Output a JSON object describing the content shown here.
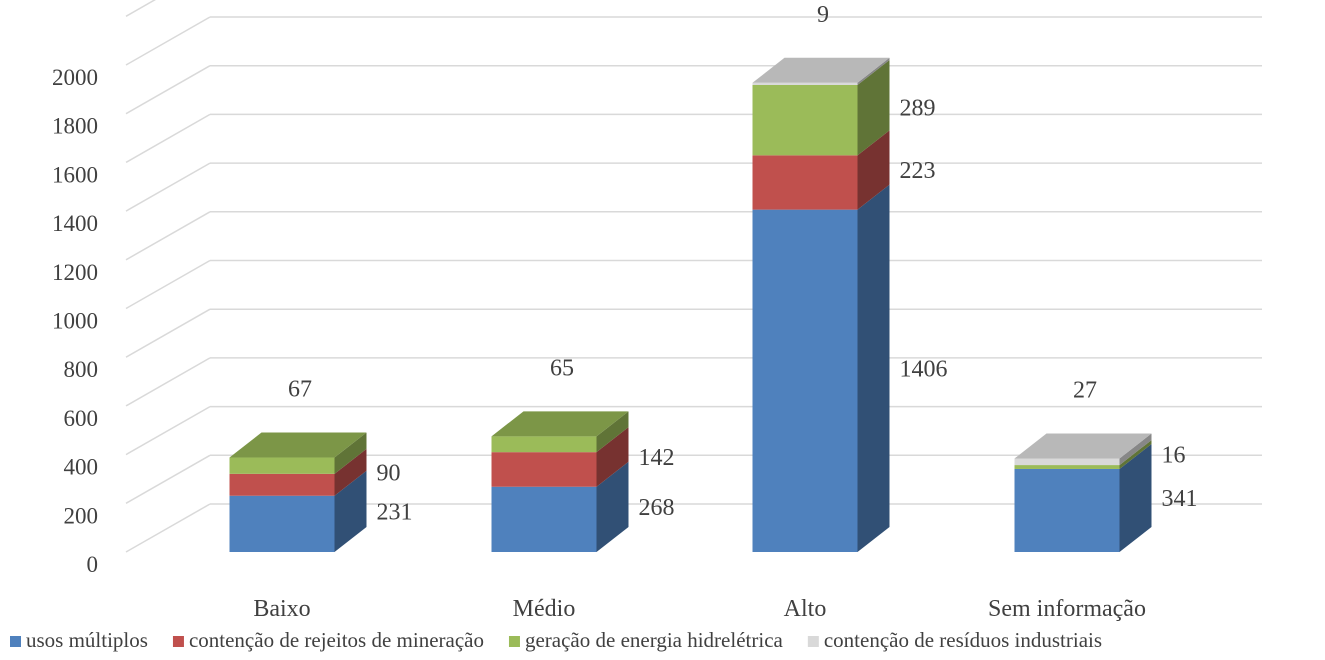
{
  "chart_data": {
    "type": "bar",
    "stacked": true,
    "three_d": true,
    "categories": [
      "Baixo",
      "Médio",
      "Alto",
      "Sem informação"
    ],
    "series": [
      {
        "name": "usos múltiplos",
        "values": [
          231,
          268,
          1406,
          341
        ],
        "color": "#4f81bd"
      },
      {
        "name": "contenção de rejeitos de mineração",
        "values": [
          90,
          142,
          223,
          0
        ],
        "color": "#c0504d"
      },
      {
        "name": "geração de energia hidrelétrica",
        "values": [
          67,
          65,
          289,
          16
        ],
        "color": "#9bbb59"
      },
      {
        "name": "contenção de resíduos industriais",
        "values": [
          0,
          0,
          9,
          27
        ],
        "color": "#d9d9d9"
      }
    ],
    "data_labels": [
      {
        "category": "Baixo",
        "labels": [
          "231",
          "90",
          "67"
        ]
      },
      {
        "category": "Médio",
        "labels": [
          "268",
          "142",
          "65"
        ]
      },
      {
        "category": "Alto",
        "labels": [
          "1406",
          "223",
          "289",
          "9"
        ]
      },
      {
        "category": "Sem informação",
        "labels": [
          "341",
          "16",
          "27"
        ]
      }
    ],
    "yticks": [
      "0",
      "200",
      "400",
      "600",
      "800",
      "1000",
      "1200",
      "1400",
      "1600",
      "1800",
      "2000"
    ],
    "ylim": [
      0,
      2200
    ],
    "grid": true,
    "legend": "bottom",
    "title": "",
    "xlabel": "",
    "ylabel": ""
  }
}
